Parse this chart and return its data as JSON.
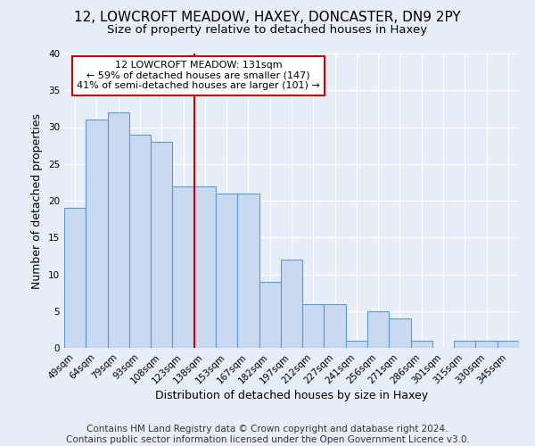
{
  "title": "12, LOWCROFT MEADOW, HAXEY, DONCASTER, DN9 2PY",
  "subtitle": "Size of property relative to detached houses in Haxey",
  "xlabel": "Distribution of detached houses by size in Haxey",
  "ylabel": "Number of detached properties",
  "categories": [
    "49sqm",
    "64sqm",
    "79sqm",
    "93sqm",
    "108sqm",
    "123sqm",
    "138sqm",
    "153sqm",
    "167sqm",
    "182sqm",
    "197sqm",
    "212sqm",
    "227sqm",
    "241sqm",
    "256sqm",
    "271sqm",
    "286sqm",
    "301sqm",
    "315sqm",
    "330sqm",
    "345sqm"
  ],
  "values": [
    19,
    31,
    32,
    29,
    28,
    22,
    22,
    21,
    21,
    9,
    12,
    6,
    6,
    1,
    5,
    4,
    1,
    0,
    1,
    1,
    1
  ],
  "bar_color": "#c9d9f0",
  "bar_edge_color": "#5b9bd5",
  "bar_width": 1.0,
  "vline_x": 5.5,
  "vline_color": "#cc0000",
  "ylim": [
    0,
    40
  ],
  "yticks": [
    0,
    5,
    10,
    15,
    20,
    25,
    30,
    35,
    40
  ],
  "annotation_title": "12 LOWCROFT MEADOW: 131sqm",
  "annotation_line1": "← 59% of detached houses are smaller (147)",
  "annotation_line2": "41% of semi-detached houses are larger (101) →",
  "annotation_box_color": "#ffffff",
  "annotation_box_edge": "#cc0000",
  "footer1": "Contains HM Land Registry data © Crown copyright and database right 2024.",
  "footer2": "Contains public sector information licensed under the Open Government Licence v3.0.",
  "background_color": "#e8eef8",
  "plot_bg_color": "#e8eef8",
  "title_fontsize": 11,
  "subtitle_fontsize": 9.5,
  "axis_label_fontsize": 9,
  "tick_fontsize": 7.5,
  "footer_fontsize": 7.5,
  "annotation_fontsize": 8
}
